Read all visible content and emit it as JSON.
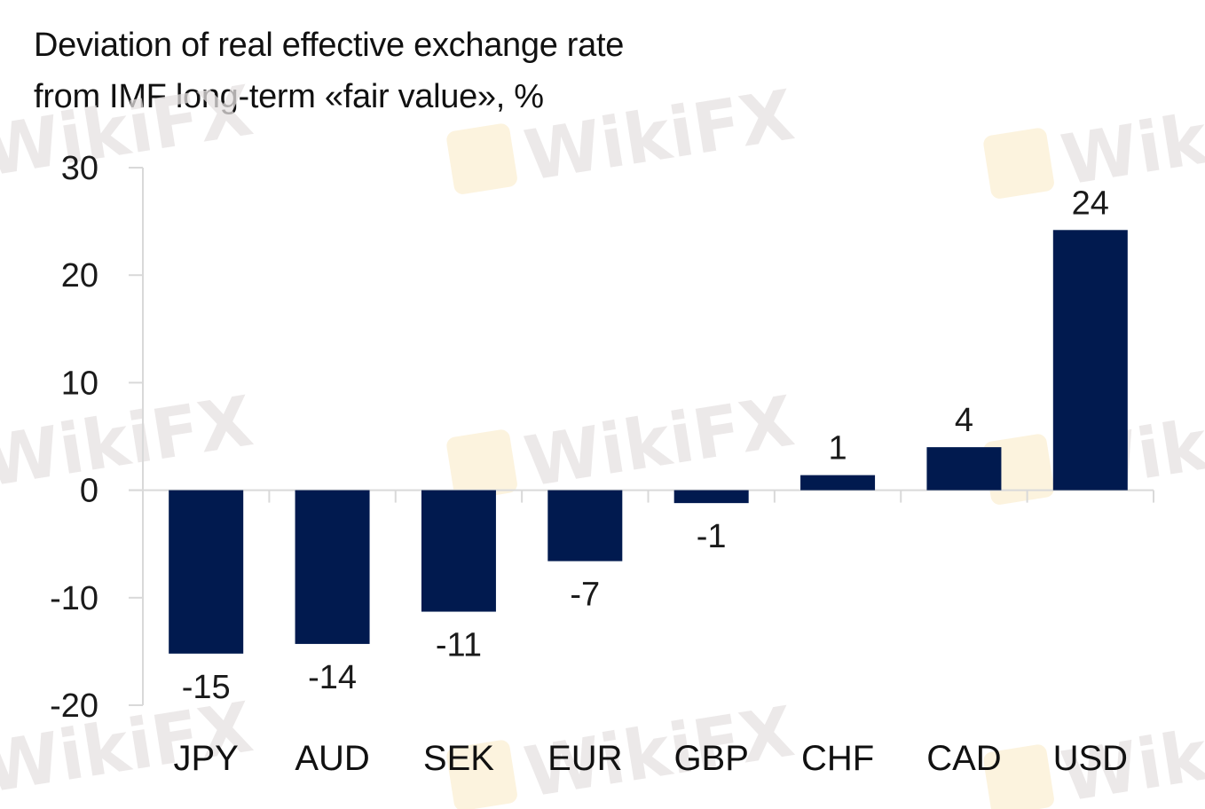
{
  "chart_data": {
    "type": "bar",
    "title": "Deviation of real effective exchange rate from IMF long-term «fair value», %",
    "title_lines": [
      "Deviation of real effective exchange rate",
      "from IMF long-term «fair value», %"
    ],
    "categories": [
      "JPY",
      "AUD",
      "SEK",
      "EUR",
      "GBP",
      "CHF",
      "CAD",
      "USD"
    ],
    "values": [
      -15.2,
      -14.3,
      -11.3,
      -6.6,
      -1.2,
      1.4,
      4.0,
      24.2
    ],
    "data_labels": [
      "-15",
      "-14",
      "-11",
      "-7",
      "-1",
      "1",
      "4",
      "24"
    ],
    "xlabel": "",
    "ylabel": "",
    "ylim": [
      -20,
      30
    ],
    "yticks": [
      30,
      20,
      10,
      0,
      -10,
      -20
    ],
    "ytick_labels": [
      "30",
      "20",
      "10",
      "0",
      "-10",
      "-20"
    ],
    "grid": false,
    "legend": "none",
    "bar_color": "#011a4f",
    "axis_color": "#d9d9d9",
    "watermark_text": "WikiFX"
  }
}
